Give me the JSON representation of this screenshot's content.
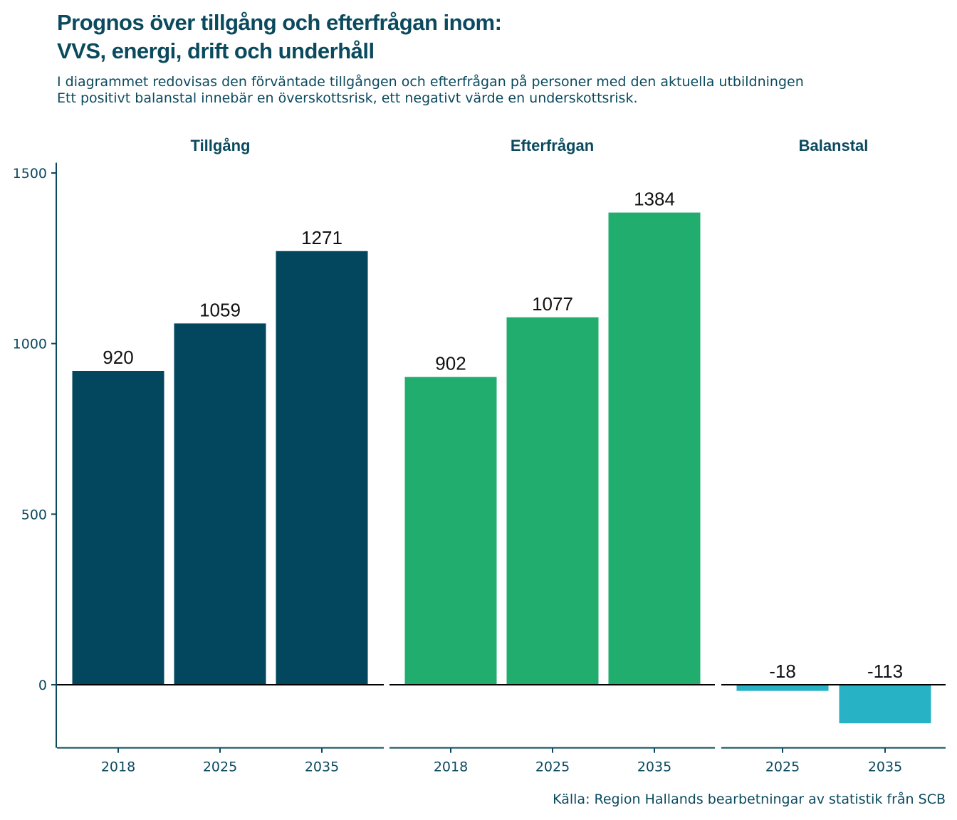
{
  "title_line1": "Prognos över tillgång och efterfrågan inom:",
  "title_line2": "VVS, energi, drift och underhåll",
  "subtitle_line1": "I diagrammet redovisas den förväntade tillgången och efterfrågan på personer med den aktuella utbildningen",
  "subtitle_line2": "Ett positivt balanstal innebär en överskottsrisk, ett negativt värde en underskottsrisk.",
  "caption": "Källa: Region Hallands bearbetningar av statistik från SCB",
  "chart_data": {
    "type": "bar",
    "ylim": [
      -185,
      1530
    ],
    "yticks": [
      0,
      500,
      1000,
      1500
    ],
    "grid": false,
    "legend": "none",
    "panels": [
      {
        "name": "Tillgång",
        "color": "#02475e",
        "categories": [
          "2018",
          "2025",
          "2035"
        ],
        "values": [
          920,
          1059,
          1271
        ]
      },
      {
        "name": "Efterfrågan",
        "color": "#21ad6e",
        "categories": [
          "2018",
          "2025",
          "2035"
        ],
        "values": [
          902,
          1077,
          1384
        ]
      },
      {
        "name": "Balanstal",
        "color": "#27b2c6",
        "categories": [
          "2025",
          "2035"
        ],
        "values": [
          -18,
          -113
        ]
      }
    ]
  }
}
